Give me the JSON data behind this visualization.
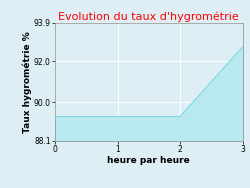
{
  "title": "Evolution du taux d'hygrométrie",
  "title_color": "#ff0000",
  "xlabel": "heure par heure",
  "ylabel": "Taux hygrométrie %",
  "x": [
    0,
    1,
    2,
    3
  ],
  "y": [
    89.3,
    89.3,
    89.3,
    92.7
  ],
  "ylim": [
    88.1,
    93.9
  ],
  "xlim": [
    0,
    3
  ],
  "yticks": [
    88.1,
    90.0,
    92.0,
    93.9
  ],
  "xticks": [
    0,
    1,
    2,
    3
  ],
  "line_color": "#7fd8e8",
  "fill_color": "#b8e8f0",
  "fill_alpha": 1.0,
  "bg_color": "#ddeef5",
  "grid_color": "#ffffff",
  "title_fontsize": 8.0,
  "axis_label_fontsize": 6.5,
  "tick_fontsize": 5.5
}
